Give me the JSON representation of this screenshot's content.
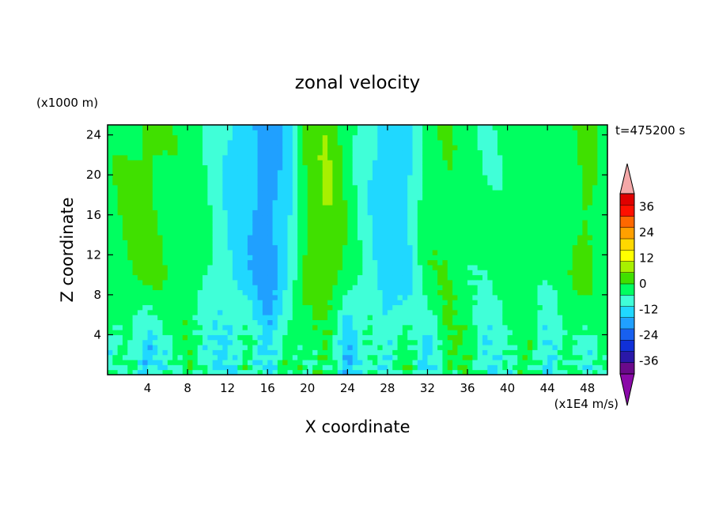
{
  "chart_data": {
    "type": "heatmap",
    "title": "zonal velocity",
    "xlabel": "X coordinate",
    "ylabel": "Z coordinate",
    "x_unit": "(x1E4 m/s)",
    "y_unit": "(x1000 m)",
    "time_label": "t=475200 s",
    "xlim": [
      0,
      50
    ],
    "ylim": [
      0,
      25
    ],
    "x_ticks": [
      4,
      8,
      12,
      16,
      20,
      24,
      28,
      32,
      36,
      40,
      44,
      48
    ],
    "y_ticks": [
      4,
      8,
      12,
      16,
      20,
      24
    ],
    "colorbar": {
      "min": -42,
      "max": 42,
      "step": 6,
      "labels": [
        36,
        24,
        12,
        0,
        -12,
        -24,
        -36
      ],
      "colors": [
        "#6a0a8a",
        "#2a18a8",
        "#1030d8",
        "#1860f0",
        "#20a0ff",
        "#20d8ff",
        "#40ffd8",
        "#00ff60",
        "#40e000",
        "#a8f000",
        "#ffff00",
        "#ffd800",
        "#ffa000",
        "#ff6800",
        "#ff1000",
        "#e00000"
      ],
      "under_color": "#8a0aa8",
      "over_color": "#f4a8a8"
    },
    "column_profile": {
      "x": [
        0,
        2,
        4,
        6,
        8,
        10,
        12,
        14,
        16,
        18,
        20,
        22,
        24,
        26,
        28,
        30,
        32,
        34,
        36,
        38,
        40,
        42,
        44,
        46,
        48,
        50
      ],
      "upper_values": [
        4,
        6,
        8,
        5,
        4,
        0,
        -6,
        -10,
        -16,
        -8,
        8,
        12,
        4,
        -4,
        -10,
        -8,
        4,
        6,
        2,
        0,
        2,
        4,
        2,
        4,
        8,
        2
      ],
      "lower_values": [
        -4,
        0,
        -8,
        -2,
        4,
        -4,
        -6,
        2,
        -10,
        6,
        0,
        4,
        -12,
        2,
        -6,
        4,
        -8,
        6,
        4,
        -6,
        0,
        4,
        -8,
        4,
        -4,
        2
      ]
    }
  }
}
